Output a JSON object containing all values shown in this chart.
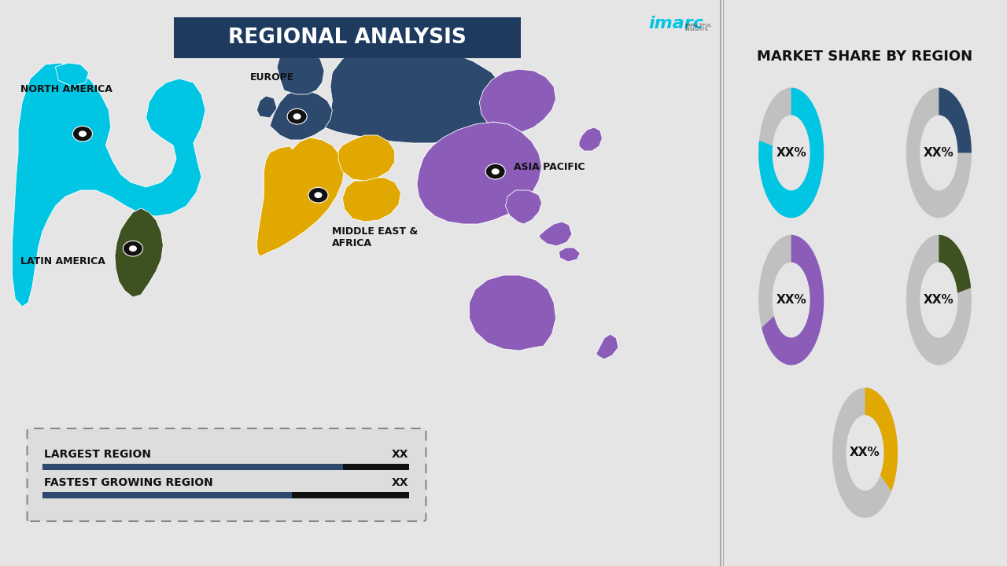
{
  "title": "REGIONAL ANALYSIS",
  "bg_color": "#e5e5e5",
  "right_panel_bg": "#ebebeb",
  "right_title": "MARKET SHARE BY REGION",
  "regions": [
    {
      "name": "NORTH AMERICA",
      "color": "#00c5e3"
    },
    {
      "name": "EUROPE",
      "color": "#2d4a6e"
    },
    {
      "name": "ASIA PACIFIC",
      "color": "#8b5db8"
    },
    {
      "name": "MIDDLE EAST &\nAFRICA",
      "color": "#e0a800"
    },
    {
      "name": "LATIN AMERICA",
      "color": "#3d5220"
    }
  ],
  "donut_colors": [
    "#00c5e3",
    "#2d4a6e",
    "#8b5db8",
    "#3d5220",
    "#e0a800"
  ],
  "donut_gray": "#c0c0c0",
  "donut_label": "XX%",
  "legend_label1": "LARGEST REGION",
  "legend_label2": "FASTEST GROWING REGION",
  "legend_value": "XX",
  "legend_bar_blue": "#2d4a6e",
  "legend_bar_dark": "#111111",
  "imarc_color": "#00c5e3",
  "title_box_color": "#1e3a5f",
  "divider_color": "#aaaaaa"
}
